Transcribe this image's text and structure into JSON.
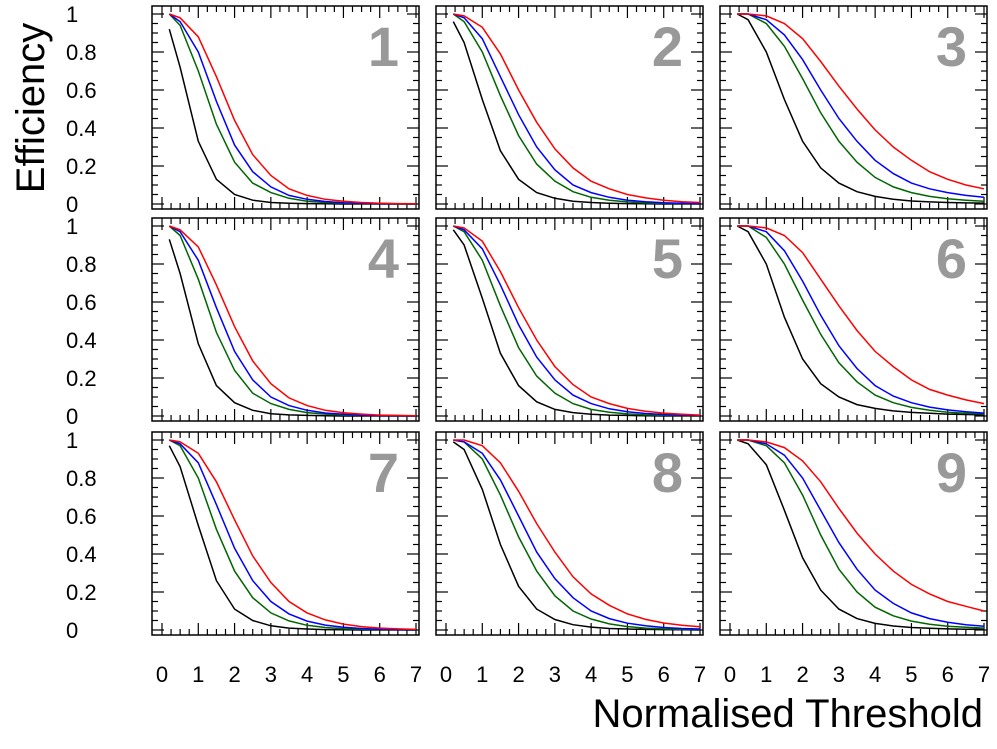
{
  "chart_data": {
    "type": "line",
    "layout": "3x3 grid of panels",
    "xlabel": "Normalised Threshold",
    "ylabel": "Efficiency",
    "xlim": [
      0,
      7
    ],
    "ylim": [
      0,
      1
    ],
    "x_ticks": [
      "0",
      "1",
      "2",
      "3",
      "4",
      "5",
      "6",
      "7"
    ],
    "y_ticks": [
      "0",
      "0.2",
      "0.4",
      "0.6",
      "0.8",
      "1"
    ],
    "panel_label_color": "#999999",
    "series_colors": [
      "#000000",
      "#006600",
      "#0000ff",
      "#ff0000"
    ],
    "x": [
      0.2,
      0.5,
      1.0,
      1.5,
      2.0,
      2.5,
      3.0,
      3.5,
      4.0,
      4.5,
      5.0,
      5.5,
      6.0,
      6.5,
      7.0
    ],
    "panels": [
      {
        "label": "1",
        "series": [
          {
            "color": "black",
            "values": [
              0.92,
              0.72,
              0.33,
              0.13,
              0.05,
              0.02,
              0.008,
              0.004,
              0.002,
              0.001,
              0,
              0,
              0,
              0,
              0
            ]
          },
          {
            "color": "green",
            "values": [
              1.0,
              0.94,
              0.7,
              0.42,
              0.22,
              0.11,
              0.06,
              0.03,
              0.015,
              0.008,
              0.004,
              0.002,
              0.001,
              0,
              0
            ]
          },
          {
            "color": "blue",
            "values": [
              1.0,
              0.96,
              0.8,
              0.54,
              0.31,
              0.17,
              0.09,
              0.045,
              0.025,
              0.013,
              0.007,
              0.004,
              0.002,
              0.001,
              0
            ]
          },
          {
            "color": "red",
            "values": [
              1.0,
              0.98,
              0.88,
              0.67,
              0.44,
              0.26,
              0.15,
              0.08,
              0.045,
              0.025,
              0.014,
              0.008,
              0.004,
              0.002,
              0.001
            ]
          }
        ]
      },
      {
        "label": "2",
        "series": [
          {
            "color": "black",
            "values": [
              0.96,
              0.85,
              0.55,
              0.28,
              0.13,
              0.06,
              0.03,
              0.015,
              0.008,
              0.004,
              0.002,
              0.001,
              0,
              0,
              0
            ]
          },
          {
            "color": "green",
            "values": [
              1.0,
              0.96,
              0.8,
              0.57,
              0.36,
              0.21,
              0.12,
              0.065,
              0.035,
              0.02,
              0.011,
              0.006,
              0.003,
              0.002,
              0.001
            ]
          },
          {
            "color": "blue",
            "values": [
              1.0,
              0.98,
              0.87,
              0.67,
              0.47,
              0.3,
              0.18,
              0.1,
              0.06,
              0.035,
              0.02,
              0.012,
              0.007,
              0.004,
              0.002
            ]
          },
          {
            "color": "red",
            "values": [
              1.0,
              0.99,
              0.93,
              0.79,
              0.6,
              0.43,
              0.29,
              0.19,
              0.12,
              0.08,
              0.05,
              0.032,
              0.02,
              0.012,
              0.008
            ]
          }
        ]
      },
      {
        "label": "3",
        "series": [
          {
            "color": "black",
            "values": [
              1.0,
              0.97,
              0.8,
              0.55,
              0.33,
              0.19,
              0.11,
              0.065,
              0.04,
              0.025,
              0.016,
              0.011,
              0.008,
              0.006,
              0.005
            ]
          },
          {
            "color": "green",
            "values": [
              1.0,
              1.0,
              0.95,
              0.83,
              0.66,
              0.48,
              0.33,
              0.22,
              0.14,
              0.09,
              0.06,
              0.04,
              0.028,
              0.02,
              0.014
            ]
          },
          {
            "color": "blue",
            "values": [
              1.0,
              1.0,
              0.97,
              0.89,
              0.76,
              0.6,
              0.45,
              0.33,
              0.23,
              0.16,
              0.11,
              0.08,
              0.06,
              0.045,
              0.035
            ]
          },
          {
            "color": "red",
            "values": [
              1.0,
              1.0,
              0.99,
              0.95,
              0.87,
              0.75,
              0.62,
              0.5,
              0.39,
              0.3,
              0.23,
              0.17,
              0.13,
              0.1,
              0.08
            ]
          }
        ]
      },
      {
        "label": "4",
        "series": [
          {
            "color": "black",
            "values": [
              0.93,
              0.75,
              0.38,
              0.16,
              0.07,
              0.03,
              0.012,
              0.006,
              0.003,
              0.001,
              0,
              0,
              0,
              0,
              0
            ]
          },
          {
            "color": "green",
            "values": [
              1.0,
              0.95,
              0.72,
              0.44,
              0.24,
              0.12,
              0.065,
              0.035,
              0.018,
              0.01,
              0.005,
              0.003,
              0.001,
              0,
              0
            ]
          },
          {
            "color": "blue",
            "values": [
              1.0,
              0.97,
              0.82,
              0.57,
              0.34,
              0.19,
              0.1,
              0.055,
              0.03,
              0.016,
              0.009,
              0.005,
              0.002,
              0.001,
              0
            ]
          },
          {
            "color": "red",
            "values": [
              1.0,
              0.98,
              0.89,
              0.69,
              0.47,
              0.29,
              0.17,
              0.095,
              0.055,
              0.03,
              0.017,
              0.01,
              0.005,
              0.003,
              0.001
            ]
          }
        ]
      },
      {
        "label": "5",
        "series": [
          {
            "color": "black",
            "values": [
              0.98,
              0.9,
              0.62,
              0.33,
              0.16,
              0.075,
              0.035,
              0.018,
              0.009,
              0.005,
              0.003,
              0.001,
              0,
              0,
              0
            ]
          },
          {
            "color": "green",
            "values": [
              1.0,
              0.97,
              0.82,
              0.58,
              0.36,
              0.21,
              0.12,
              0.065,
              0.035,
              0.02,
              0.011,
              0.006,
              0.003,
              0.002,
              0.001
            ]
          },
          {
            "color": "blue",
            "values": [
              1.0,
              0.98,
              0.88,
              0.69,
              0.48,
              0.31,
              0.19,
              0.11,
              0.065,
              0.038,
              0.022,
              0.013,
              0.008,
              0.005,
              0.003
            ]
          },
          {
            "color": "red",
            "values": [
              1.0,
              0.99,
              0.92,
              0.76,
              0.57,
              0.4,
              0.26,
              0.165,
              0.1,
              0.065,
              0.04,
              0.025,
              0.015,
              0.009,
              0.005
            ]
          }
        ]
      },
      {
        "label": "6",
        "series": [
          {
            "color": "black",
            "values": [
              1.0,
              0.97,
              0.8,
              0.52,
              0.3,
              0.17,
              0.1,
              0.06,
              0.04,
              0.027,
              0.019,
              0.014,
              0.01,
              0.008,
              0.006
            ]
          },
          {
            "color": "green",
            "values": [
              1.0,
              1.0,
              0.94,
              0.8,
              0.61,
              0.43,
              0.28,
              0.18,
              0.11,
              0.07,
              0.045,
              0.03,
              0.02,
              0.014,
              0.01
            ]
          },
          {
            "color": "blue",
            "values": [
              1.0,
              1.0,
              0.97,
              0.87,
              0.71,
              0.53,
              0.37,
              0.25,
              0.16,
              0.105,
              0.07,
              0.047,
              0.032,
              0.022,
              0.015
            ]
          },
          {
            "color": "red",
            "values": [
              1.0,
              1.0,
              0.99,
              0.95,
              0.86,
              0.72,
              0.58,
              0.45,
              0.34,
              0.26,
              0.19,
              0.14,
              0.11,
              0.085,
              0.065
            ]
          }
        ]
      },
      {
        "label": "7",
        "series": [
          {
            "color": "black",
            "values": [
              0.97,
              0.86,
              0.55,
              0.26,
              0.11,
              0.05,
              0.022,
              0.01,
              0.005,
              0.002,
              0.001,
              0,
              0,
              0,
              0
            ]
          },
          {
            "color": "green",
            "values": [
              1.0,
              0.97,
              0.8,
              0.53,
              0.31,
              0.17,
              0.09,
              0.048,
              0.025,
              0.013,
              0.007,
              0.004,
              0.002,
              0.001,
              0
            ]
          },
          {
            "color": "blue",
            "values": [
              1.0,
              0.98,
              0.88,
              0.66,
              0.43,
              0.26,
              0.15,
              0.085,
              0.047,
              0.026,
              0.014,
              0.008,
              0.004,
              0.002,
              0.001
            ]
          },
          {
            "color": "red",
            "values": [
              1.0,
              0.99,
              0.93,
              0.78,
              0.58,
              0.39,
              0.25,
              0.15,
              0.09,
              0.053,
              0.031,
              0.018,
              0.01,
              0.006,
              0.003
            ]
          }
        ]
      },
      {
        "label": "8",
        "series": [
          {
            "color": "black",
            "values": [
              0.99,
              0.95,
              0.74,
              0.45,
              0.23,
              0.11,
              0.055,
              0.028,
              0.015,
              0.008,
              0.005,
              0.003,
              0.002,
              0.001,
              0
            ]
          },
          {
            "color": "green",
            "values": [
              1.0,
              0.99,
              0.9,
              0.71,
              0.49,
              0.31,
              0.18,
              0.1,
              0.058,
              0.032,
              0.018,
              0.01,
              0.006,
              0.003,
              0.002
            ]
          },
          {
            "color": "blue",
            "values": [
              1.0,
              0.99,
              0.93,
              0.79,
              0.6,
              0.41,
              0.27,
              0.17,
              0.1,
              0.06,
              0.036,
              0.022,
              0.013,
              0.008,
              0.005
            ]
          },
          {
            "color": "red",
            "values": [
              1.0,
              1.0,
              0.97,
              0.88,
              0.73,
              0.56,
              0.41,
              0.28,
              0.19,
              0.13,
              0.085,
              0.056,
              0.037,
              0.025,
              0.017
            ]
          }
        ]
      },
      {
        "label": "9",
        "series": [
          {
            "color": "black",
            "values": [
              1.0,
              0.98,
              0.87,
              0.63,
              0.38,
              0.21,
              0.11,
              0.06,
              0.035,
              0.021,
              0.013,
              0.009,
              0.006,
              0.004,
              0.003
            ]
          },
          {
            "color": "green",
            "values": [
              1.0,
              1.0,
              0.97,
              0.88,
              0.71,
              0.5,
              0.32,
              0.2,
              0.12,
              0.075,
              0.047,
              0.03,
              0.02,
              0.014,
              0.01
            ]
          },
          {
            "color": "blue",
            "values": [
              1.0,
              1.0,
              0.98,
              0.92,
              0.8,
              0.63,
              0.46,
              0.32,
              0.21,
              0.14,
              0.09,
              0.06,
              0.041,
              0.028,
              0.02
            ]
          },
          {
            "color": "red",
            "values": [
              1.0,
              1.0,
              0.99,
              0.96,
              0.89,
              0.78,
              0.64,
              0.51,
              0.4,
              0.31,
              0.24,
              0.19,
              0.15,
              0.125,
              0.1
            ]
          }
        ]
      }
    ]
  }
}
